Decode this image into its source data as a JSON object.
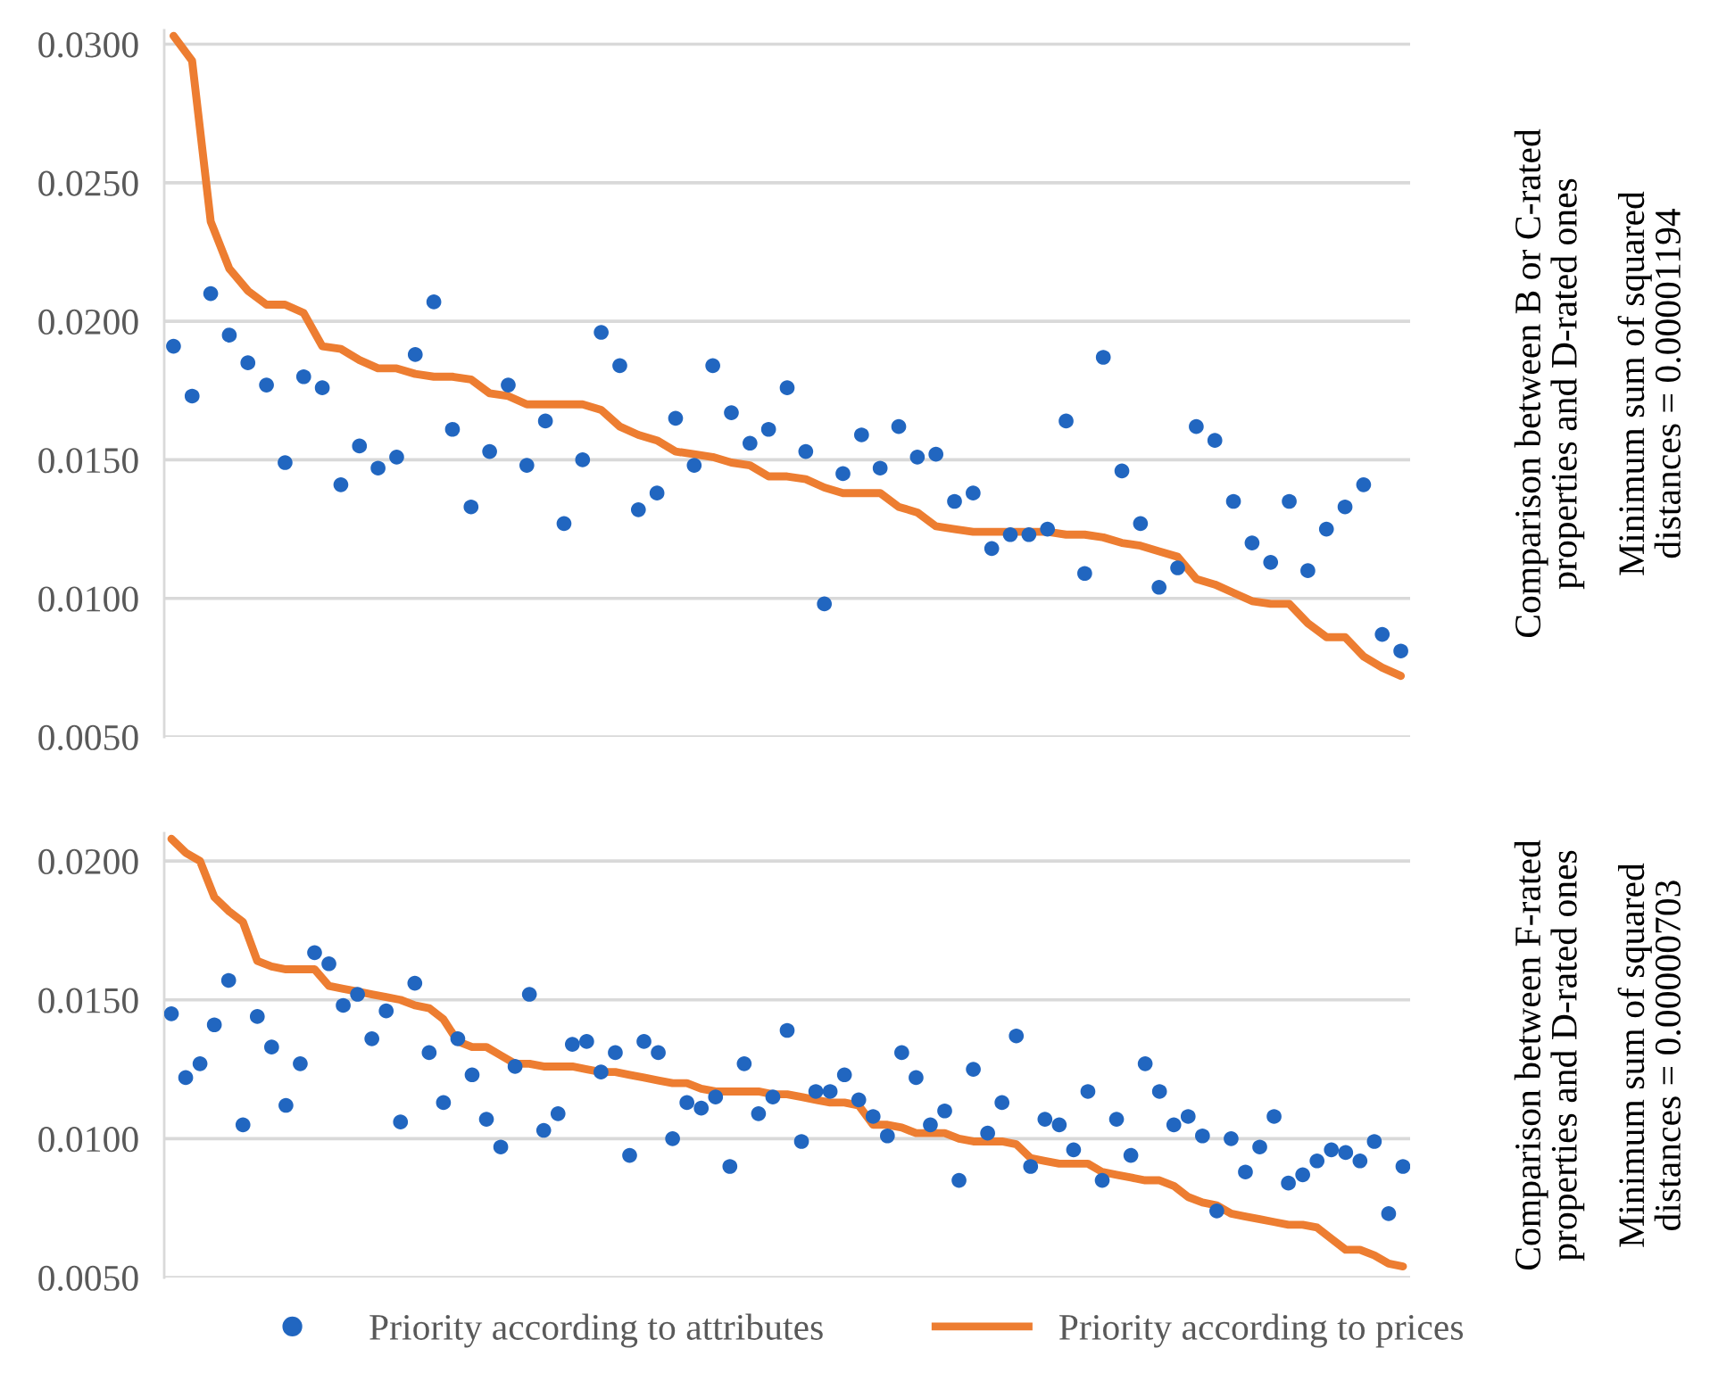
{
  "chart_data": [
    {
      "type": "scatter",
      "categories": [
        null,
        null,
        null,
        null,
        null,
        null,
        null,
        null,
        null,
        null,
        null,
        null,
        null,
        null,
        null,
        null,
        null,
        null,
        null,
        null,
        null,
        null,
        null,
        null,
        null,
        null,
        null,
        null,
        null,
        null,
        null,
        null,
        null,
        null,
        null,
        null,
        null,
        null,
        null,
        null,
        null,
        null,
        null,
        null,
        null,
        null,
        null,
        null,
        null,
        null,
        null,
        null,
        null,
        null,
        null,
        null,
        null,
        null,
        null,
        null,
        null,
        null,
        null,
        null,
        null,
        null,
        null
      ],
      "series": [
        {
          "color": "#2166c0",
          "marker": "circle",
          "values": [
            0.0191,
            0.0173,
            0.021,
            0.0195,
            0.0185,
            0.0177,
            0.0149,
            0.018,
            0.0176,
            0.0141,
            0.0155,
            0.0147,
            0.0151,
            0.0188,
            0.0207,
            0.0161,
            0.0133,
            0.0153,
            0.0177,
            0.0148,
            0.0164,
            0.0127,
            0.015,
            0.0196,
            0.0184,
            0.0132,
            0.0138,
            0.0165,
            0.0148,
            0.0184,
            0.0167,
            0.0156,
            0.0161,
            0.0176,
            0.0153,
            0.0098,
            0.0145,
            0.0159,
            0.0147,
            0.0162,
            0.0151,
            0.0152,
            0.0135,
            0.0138,
            0.0118,
            0.0123,
            0.0123,
            0.0125,
            0.0164,
            0.0109,
            0.0187,
            0.0146,
            0.0127,
            0.0104,
            0.0111,
            0.0162,
            0.0157,
            0.0135,
            0.012,
            0.0113,
            0.0135,
            0.011,
            0.0125,
            0.0133,
            0.0141,
            0.0087,
            0.0081
          ]
        },
        {
          "type": "line",
          "color": "#ed7d31",
          "line_style": "solid",
          "values": [
            0.0303,
            0.0294,
            0.0236,
            0.0219,
            0.0211,
            0.0206,
            0.0206,
            0.0203,
            0.0191,
            0.019,
            0.0186,
            0.0183,
            0.0183,
            0.0181,
            0.018,
            0.018,
            0.0179,
            0.0174,
            0.0173,
            0.017,
            0.017,
            0.017,
            0.017,
            0.0168,
            0.0162,
            0.0159,
            0.0157,
            0.0153,
            0.0152,
            0.0151,
            0.0149,
            0.0148,
            0.0144,
            0.0144,
            0.0143,
            0.014,
            0.0138,
            0.0138,
            0.0138,
            0.0133,
            0.0131,
            0.0126,
            0.0125,
            0.0124,
            0.0124,
            0.0124,
            0.0124,
            0.0124,
            0.0123,
            0.0123,
            0.0122,
            0.012,
            0.0119,
            0.0117,
            0.0115,
            0.0107,
            0.0105,
            0.0102,
            0.0099,
            0.0098,
            0.0098,
            0.0091,
            0.0086,
            0.0086,
            0.0079,
            0.0075,
            0.0072
          ]
        }
      ],
      "ylim": [
        0.005,
        0.0305
      ],
      "yticks": [
        {
          "value": 0.005,
          "label": "0.0050"
        },
        {
          "value": 0.01,
          "label": "0.0100"
        },
        {
          "value": 0.015,
          "label": "0.0150"
        },
        {
          "value": 0.02,
          "label": "0.0200"
        },
        {
          "value": 0.025,
          "label": "0.0250"
        },
        {
          "value": 0.03,
          "label": "0.0300"
        }
      ],
      "grid": "y",
      "tick_labels": "y",
      "annotations": [
        "Comparison between B or C-rated\nproperties and D-rated ones",
        "Minimum sum of squared\ndistances = 0.00001194"
      ]
    },
    {
      "type": "scatter",
      "categories": [
        null,
        null,
        null,
        null,
        null,
        null,
        null,
        null,
        null,
        null,
        null,
        null,
        null,
        null,
        null,
        null,
        null,
        null,
        null,
        null,
        null,
        null,
        null,
        null,
        null,
        null,
        null,
        null,
        null,
        null,
        null,
        null,
        null,
        null,
        null,
        null,
        null,
        null,
        null,
        null,
        null,
        null,
        null,
        null,
        null,
        null,
        null,
        null,
        null,
        null,
        null,
        null,
        null,
        null,
        null,
        null,
        null,
        null,
        null,
        null,
        null,
        null,
        null,
        null,
        null,
        null,
        null,
        null,
        null,
        null,
        null,
        null,
        null,
        null,
        null,
        null,
        null,
        null,
        null,
        null,
        null,
        null,
        null,
        null,
        null,
        null,
        null
      ],
      "series": [
        {
          "name": "Priority according to attributes",
          "color": "#2166c0",
          "marker": "circle",
          "values": [
            0.0145,
            0.0122,
            0.0127,
            0.0141,
            0.0157,
            0.0105,
            0.0144,
            0.0133,
            0.0112,
            0.0127,
            0.0167,
            0.0163,
            0.0148,
            0.0152,
            0.0136,
            0.0146,
            0.0106,
            0.0156,
            0.0131,
            0.0113,
            0.0136,
            0.0123,
            0.0107,
            0.0097,
            0.0126,
            0.0152,
            0.0103,
            0.0109,
            0.0134,
            0.0135,
            0.0124,
            0.0131,
            0.0094,
            0.0135,
            0.0131,
            0.01,
            0.0113,
            0.0111,
            0.0115,
            0.009,
            0.0127,
            0.0109,
            0.0115,
            0.0139,
            0.0099,
            0.0117,
            0.0117,
            0.0123,
            0.0114,
            0.0108,
            0.0101,
            0.0131,
            0.0122,
            0.0105,
            0.011,
            0.0085,
            0.0125,
            0.0102,
            0.0113,
            0.0137,
            0.009,
            0.0107,
            0.0105,
            0.0096,
            0.0117,
            0.0085,
            0.0107,
            0.0094,
            0.0127,
            0.0117,
            0.0105,
            0.0108,
            0.0101,
            0.0074,
            0.01,
            0.0088,
            0.0097,
            0.0108,
            0.0084,
            0.0087,
            0.0092,
            0.0096,
            0.0095,
            0.0092,
            0.0099,
            0.0073,
            0.009
          ]
        },
        {
          "type": "line",
          "name": "Priority according to prices",
          "color": "#ed7d31",
          "line_style": "solid",
          "values": [
            0.0208,
            0.0203,
            0.02,
            0.0187,
            0.0182,
            0.0178,
            0.0164,
            0.0162,
            0.0161,
            0.0161,
            0.0161,
            0.0155,
            0.0154,
            0.0153,
            0.0152,
            0.0151,
            0.015,
            0.0148,
            0.0147,
            0.0143,
            0.0135,
            0.0133,
            0.0133,
            0.013,
            0.0127,
            0.0127,
            0.0126,
            0.0126,
            0.0126,
            0.0125,
            0.0124,
            0.0124,
            0.0123,
            0.0122,
            0.0121,
            0.012,
            0.012,
            0.0118,
            0.0117,
            0.0117,
            0.0117,
            0.0117,
            0.0116,
            0.0116,
            0.0115,
            0.0114,
            0.0113,
            0.0113,
            0.0112,
            0.0105,
            0.0105,
            0.0104,
            0.0102,
            0.0102,
            0.0102,
            0.01,
            0.0099,
            0.0099,
            0.0099,
            0.0098,
            0.0093,
            0.0092,
            0.0091,
            0.0091,
            0.0091,
            0.0088,
            0.0087,
            0.0086,
            0.0085,
            0.0085,
            0.0083,
            0.0079,
            0.0077,
            0.0076,
            0.0073,
            0.0072,
            0.0071,
            0.007,
            0.0069,
            0.0069,
            0.0068,
            0.0064,
            0.006,
            0.006,
            0.0058,
            0.0055,
            0.0054
          ]
        }
      ],
      "ylim": [
        0.005,
        0.021
      ],
      "yticks": [
        {
          "value": 0.005,
          "label": "0.0050"
        },
        {
          "value": 0.01,
          "label": "0.0100"
        },
        {
          "value": 0.015,
          "label": "0.0150"
        },
        {
          "value": 0.02,
          "label": "0.0200"
        }
      ],
      "grid": "y",
      "tick_labels": "y",
      "legend": "bottom",
      "annotations": [
        "Comparison between F-rated\nproperties and D-rated ones",
        "Minimum sum of squared\ndistances = 0.00000703"
      ]
    }
  ]
}
